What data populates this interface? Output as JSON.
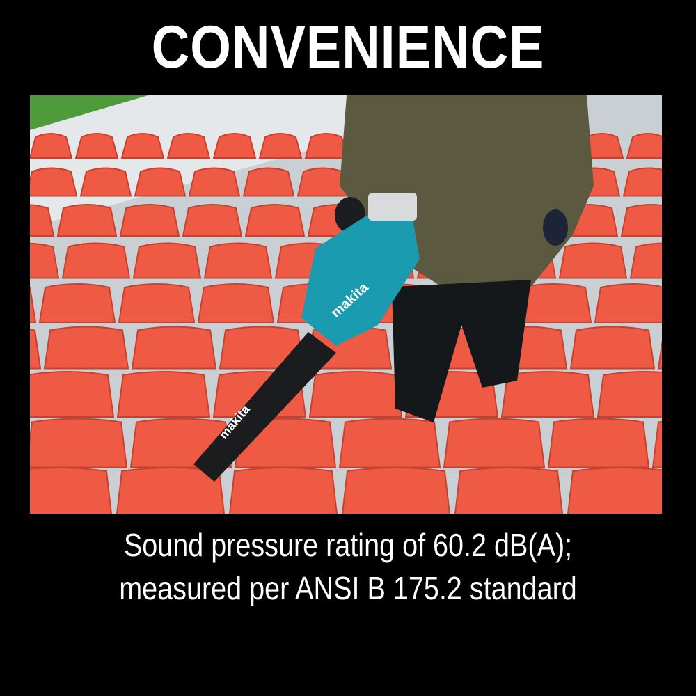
{
  "title": "CONVENIENCE",
  "photo": {
    "subject": "Person using cordless blower among stadium seats",
    "tool_logo": "makita",
    "colors": {
      "seat": "#ee5a43",
      "tool": "#1a9bb0",
      "shirt": "#5b5a40",
      "grass": "#4f9a3a"
    }
  },
  "caption": {
    "line1": "Sound pressure rating of 60.2 dB(A);",
    "line2": "measured per ANSI B 175.2 standard"
  }
}
